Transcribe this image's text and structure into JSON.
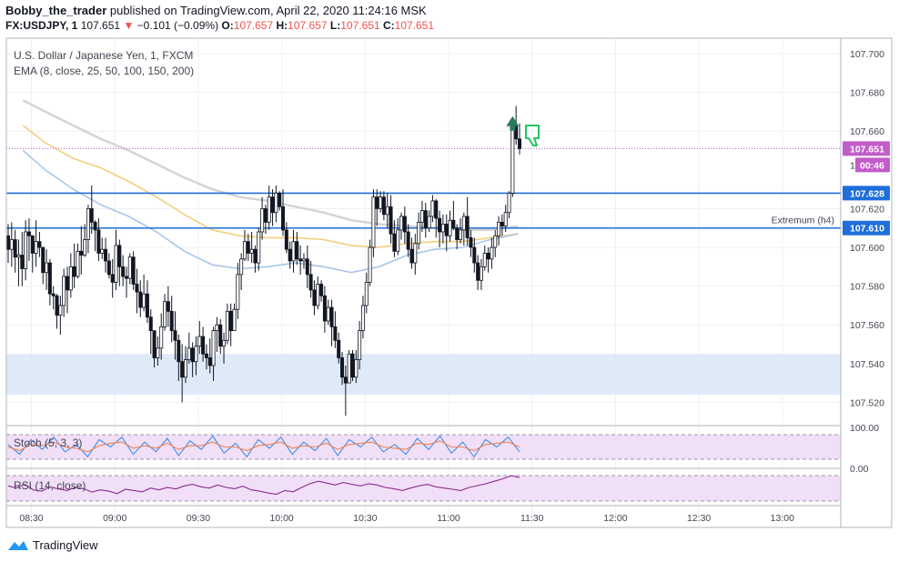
{
  "header": {
    "author": "Bobby_the_trader",
    "published_text": " published on TradingView.com, April 22, 2020 11:24:16 MSK",
    "symbol": "FX:USDJPY, 1",
    "last_price": "107.651",
    "change_arrow": "▼",
    "change": "−0.101 (−0.09%)",
    "o_label": "O:",
    "o_value": "107.657",
    "h_label": "H:",
    "h_value": "107.657",
    "l_label": "L:",
    "l_value": "107.651",
    "c_label": "C:",
    "c_value": "107.651"
  },
  "legend": {
    "instrument": "U.S. Dollar / Japanese Yen, 1, FXCM",
    "ema": "EMA (8, close, 25, 50, 100, 150, 200)",
    "stoch": "Stoch (5, 3, 3)",
    "rsi": "RSI (14, close)"
  },
  "footer": {
    "brand": "TradingView"
  },
  "colors": {
    "candle": "#131722",
    "hline": "#1e6fd9",
    "ema_fast": "#a7c6ea",
    "ema_mid": "#f2cf7c",
    "ema_slow": "#d4d4d4",
    "price_tag": "#c15cc9",
    "osc_band": "#f1dff7",
    "stoch_k": "#3f8ee8",
    "stoch_d": "#f0834e",
    "rsi_line": "#8a2c8e",
    "zone": "#dbe8f8",
    "arrow_up": "#2a7a5b",
    "thumb": "#22c55e"
  },
  "annotations": {
    "extremum_label": "Extremum (h4)",
    "countdown": "00:46",
    "partial_tick": "1"
  },
  "chart_data": {
    "type": "candlestick",
    "ylim": [
      107.508,
      107.708
    ],
    "y_ticks": [
      "107.700",
      "107.680",
      "107.660",
      "107.620",
      "107.600",
      "107.580",
      "107.560",
      "107.540",
      "107.520"
    ],
    "y_tick_values": [
      107.7,
      107.68,
      107.66,
      107.62,
      107.6,
      107.58,
      107.56,
      107.54,
      107.52
    ],
    "x_ticks": [
      "08:30",
      "09:00",
      "09:30",
      "10:00",
      "10:30",
      "11:00",
      "11:30",
      "12:00",
      "12:30",
      "13:00"
    ],
    "x_tick_minutes": [
      510,
      540,
      570,
      600,
      630,
      660,
      690,
      720,
      750,
      780
    ],
    "x_range_minutes": [
      501,
      801
    ],
    "horizontal_levels": [
      {
        "value": 107.628,
        "label": "107.628"
      },
      {
        "value": 107.61,
        "label": "107.610"
      }
    ],
    "last_price": {
      "value": 107.651,
      "label": "107.651"
    },
    "zone": [
      107.524,
      107.545
    ],
    "candles": [
      [
        107.606,
        107.599,
        107.612,
        107.592
      ],
      [
        107.599,
        107.604,
        107.613,
        107.59
      ],
      [
        107.604,
        107.595,
        107.609,
        107.587
      ],
      [
        107.595,
        107.596,
        107.604,
        107.58
      ],
      [
        107.596,
        107.589,
        107.608,
        107.58
      ],
      [
        107.589,
        107.608,
        107.614,
        107.583
      ],
      [
        107.608,
        107.606,
        107.615,
        107.593
      ],
      [
        107.606,
        107.597,
        107.603,
        107.587
      ],
      [
        107.597,
        107.603,
        107.614,
        107.59
      ],
      [
        107.603,
        107.6,
        107.608,
        107.595
      ],
      [
        107.6,
        107.587,
        107.598,
        107.581
      ],
      [
        107.587,
        107.592,
        107.599,
        107.578
      ],
      [
        107.592,
        107.576,
        107.594,
        107.57
      ],
      [
        107.576,
        107.575,
        107.58,
        107.568
      ],
      [
        107.575,
        107.565,
        107.576,
        107.558
      ],
      [
        107.565,
        107.57,
        107.575,
        107.555
      ],
      [
        107.57,
        107.585,
        107.589,
        107.564
      ],
      [
        107.585,
        107.578,
        107.59,
        107.566
      ],
      [
        107.578,
        107.59,
        107.597,
        107.574
      ],
      [
        107.59,
        107.585,
        107.602,
        107.579
      ],
      [
        107.585,
        107.598,
        107.602,
        107.584
      ],
      [
        107.598,
        107.596,
        107.611,
        107.586
      ],
      [
        107.596,
        107.604,
        107.612,
        107.595
      ],
      [
        107.604,
        107.62,
        107.622,
        107.597
      ],
      [
        107.62,
        107.613,
        107.632,
        107.607
      ],
      [
        107.613,
        107.609,
        107.614,
        107.598
      ],
      [
        107.609,
        107.597,
        107.615,
        107.593
      ],
      [
        107.597,
        107.599,
        107.605,
        107.594
      ],
      [
        107.599,
        107.593,
        107.605,
        107.587
      ],
      [
        107.593,
        107.586,
        107.597,
        107.584
      ],
      [
        107.586,
        107.582,
        107.594,
        107.574
      ],
      [
        107.582,
        107.601,
        107.609,
        107.578
      ],
      [
        107.601,
        107.59,
        107.604,
        107.58
      ],
      [
        107.59,
        107.585,
        107.596,
        107.58
      ],
      [
        107.585,
        107.584,
        107.59,
        107.574
      ],
      [
        107.584,
        107.595,
        107.597,
        107.581
      ],
      [
        107.595,
        107.581,
        107.598,
        107.578
      ],
      [
        107.581,
        107.577,
        107.589,
        107.566
      ],
      [
        107.577,
        107.569,
        107.583,
        107.564
      ],
      [
        107.569,
        107.576,
        107.586,
        107.567
      ],
      [
        107.576,
        107.564,
        107.583,
        107.561
      ],
      [
        107.564,
        107.557,
        107.568,
        107.545
      ],
      [
        107.557,
        107.543,
        107.557,
        107.538
      ],
      [
        107.543,
        107.548,
        107.554,
        107.539
      ],
      [
        107.548,
        107.559,
        107.566,
        107.542
      ],
      [
        107.559,
        107.572,
        107.576,
        107.557
      ],
      [
        107.572,
        107.567,
        107.58,
        107.559
      ],
      [
        107.567,
        107.557,
        107.575,
        107.551
      ],
      [
        107.557,
        107.552,
        107.567,
        107.542
      ],
      [
        107.552,
        107.541,
        107.555,
        107.531
      ],
      [
        107.541,
        107.533,
        107.55,
        107.52
      ],
      [
        107.533,
        107.542,
        107.549,
        107.53
      ],
      [
        107.542,
        107.548,
        107.556,
        107.54
      ],
      [
        107.548,
        107.541,
        107.551,
        107.533
      ],
      [
        107.541,
        107.549,
        107.554,
        107.534
      ],
      [
        107.549,
        107.554,
        107.562,
        107.545
      ],
      [
        107.554,
        107.545,
        107.559,
        107.541
      ],
      [
        107.545,
        107.543,
        107.55,
        107.537
      ],
      [
        107.543,
        107.539,
        107.553,
        107.535
      ],
      [
        107.539,
        107.557,
        107.559,
        107.531
      ],
      [
        107.557,
        107.56,
        107.564,
        107.546
      ],
      [
        107.56,
        107.549,
        107.563,
        107.545
      ],
      [
        107.549,
        107.552,
        107.556,
        107.54
      ],
      [
        107.552,
        107.567,
        107.571,
        107.55
      ],
      [
        107.567,
        107.557,
        107.571,
        107.549
      ],
      [
        107.557,
        107.568,
        107.571,
        107.561
      ],
      [
        107.568,
        107.586,
        107.592,
        107.563
      ],
      [
        107.586,
        107.594,
        107.597,
        107.578
      ],
      [
        107.594,
        107.603,
        107.609,
        107.593
      ],
      [
        107.603,
        107.597,
        107.607,
        107.593
      ],
      [
        107.597,
        107.599,
        107.608,
        107.592
      ],
      [
        107.599,
        107.592,
        107.601,
        107.587
      ],
      [
        107.592,
        107.608,
        107.61,
        107.588
      ],
      [
        107.608,
        107.62,
        107.626,
        107.604
      ],
      [
        107.62,
        107.613,
        107.622,
        107.607
      ],
      [
        107.613,
        107.626,
        107.632,
        107.609
      ],
      [
        107.626,
        107.618,
        107.63,
        107.611
      ],
      [
        107.618,
        107.628,
        107.632,
        107.613
      ],
      [
        107.628,
        107.621,
        107.629,
        107.619
      ],
      [
        107.621,
        107.609,
        107.63,
        107.606
      ],
      [
        107.609,
        107.599,
        107.613,
        107.597
      ],
      [
        107.599,
        107.593,
        107.603,
        107.589
      ],
      [
        107.593,
        107.603,
        107.609,
        107.587
      ],
      [
        107.603,
        107.594,
        107.608,
        107.591
      ],
      [
        107.594,
        107.593,
        107.601,
        107.586
      ],
      [
        107.593,
        107.594,
        107.597,
        107.589
      ],
      [
        107.594,
        107.586,
        107.601,
        107.579
      ],
      [
        107.586,
        107.578,
        107.593,
        107.574
      ],
      [
        107.578,
        107.57,
        107.583,
        107.565
      ],
      [
        107.57,
        107.581,
        107.585,
        107.568
      ],
      [
        107.581,
        107.575,
        107.583,
        107.572
      ],
      [
        107.575,
        107.562,
        107.58,
        107.556
      ],
      [
        107.562,
        107.569,
        107.573,
        107.56
      ],
      [
        107.569,
        107.559,
        107.573,
        107.549
      ],
      [
        107.559,
        107.552,
        107.567,
        107.548
      ],
      [
        107.552,
        107.543,
        107.556,
        107.54
      ],
      [
        107.543,
        107.533,
        107.546,
        107.529
      ],
      [
        107.533,
        107.53,
        107.539,
        107.513
      ],
      [
        107.53,
        107.545,
        107.547,
        107.53
      ],
      [
        107.545,
        107.533,
        107.547,
        107.531
      ],
      [
        107.533,
        107.542,
        107.547,
        107.53
      ],
      [
        107.542,
        107.557,
        107.562,
        107.537
      ],
      [
        107.557,
        107.57,
        107.575,
        107.553
      ],
      [
        107.57,
        107.582,
        107.587,
        107.566
      ],
      [
        107.582,
        107.6,
        107.604,
        107.58
      ],
      [
        107.6,
        107.626,
        107.63,
        107.595
      ],
      [
        107.626,
        107.62,
        107.63,
        107.611
      ],
      [
        107.62,
        107.626,
        107.629,
        107.618
      ],
      [
        107.626,
        107.617,
        107.629,
        107.614
      ],
      [
        107.617,
        107.621,
        107.628,
        107.61
      ],
      [
        107.621,
        107.607,
        107.627,
        107.602
      ],
      [
        107.607,
        107.598,
        107.614,
        107.595
      ],
      [
        107.598,
        107.609,
        107.615,
        107.596
      ],
      [
        107.609,
        107.616,
        107.618,
        107.604
      ],
      [
        107.616,
        107.608,
        107.621,
        107.602
      ],
      [
        107.608,
        107.599,
        107.612,
        107.595
      ],
      [
        107.599,
        107.592,
        107.605,
        107.589
      ],
      [
        107.592,
        107.602,
        107.607,
        107.586
      ],
      [
        107.602,
        107.613,
        107.618,
        107.599
      ],
      [
        107.613,
        107.619,
        107.624,
        107.608
      ],
      [
        107.619,
        107.61,
        107.623,
        107.605
      ],
      [
        107.61,
        107.616,
        107.619,
        107.608
      ],
      [
        107.616,
        107.624,
        107.627,
        107.613
      ],
      [
        107.624,
        107.615,
        107.625,
        107.605
      ],
      [
        107.615,
        107.608,
        107.619,
        107.6
      ],
      [
        107.608,
        107.612,
        107.617,
        107.602
      ],
      [
        107.612,
        107.606,
        107.617,
        107.598
      ],
      [
        107.606,
        107.614,
        107.619,
        107.603
      ],
      [
        107.614,
        107.61,
        107.624,
        107.609
      ],
      [
        107.61,
        107.604,
        107.612,
        107.599
      ],
      [
        107.604,
        107.609,
        107.615,
        107.602
      ],
      [
        107.609,
        107.616,
        107.618,
        107.601
      ],
      [
        107.616,
        107.605,
        107.626,
        107.601
      ],
      [
        107.605,
        107.6,
        107.609,
        107.595
      ],
      [
        107.6,
        107.592,
        107.605,
        107.587
      ],
      [
        107.592,
        107.583,
        107.596,
        107.578
      ],
      [
        107.583,
        107.59,
        107.594,
        107.578
      ],
      [
        107.59,
        107.597,
        107.601,
        107.588
      ],
      [
        107.597,
        107.594,
        107.6,
        107.587
      ],
      [
        107.594,
        107.6,
        107.605,
        107.589
      ],
      [
        107.6,
        107.606,
        107.609,
        107.595
      ],
      [
        107.606,
        107.613,
        107.616,
        107.601
      ],
      [
        107.613,
        107.611,
        107.617,
        107.606
      ],
      [
        107.611,
        107.618,
        107.622,
        107.608
      ],
      [
        107.618,
        107.628,
        107.629,
        107.615
      ],
      [
        107.628,
        107.663,
        107.667,
        107.626
      ],
      [
        107.663,
        107.656,
        107.673,
        107.653
      ],
      [
        107.656,
        107.651,
        107.664,
        107.648
      ]
    ],
    "ema_fast": [
      [
        507,
        107.65
      ],
      [
        515,
        107.64
      ],
      [
        525,
        107.63
      ],
      [
        535,
        107.622
      ],
      [
        545,
        107.616
      ],
      [
        555,
        107.608
      ],
      [
        565,
        107.598
      ],
      [
        575,
        107.591
      ],
      [
        585,
        107.589
      ],
      [
        595,
        107.59
      ],
      [
        605,
        107.592
      ],
      [
        615,
        107.59
      ],
      [
        625,
        107.587
      ],
      [
        635,
        107.59
      ],
      [
        645,
        107.596
      ],
      [
        655,
        107.599
      ],
      [
        665,
        107.6
      ],
      [
        675,
        107.604
      ],
      [
        685,
        107.607
      ]
    ],
    "ema_mid": [
      [
        507,
        107.663
      ],
      [
        515,
        107.654
      ],
      [
        525,
        107.646
      ],
      [
        535,
        107.641
      ],
      [
        545,
        107.634
      ],
      [
        555,
        107.626
      ],
      [
        565,
        107.617
      ],
      [
        575,
        107.609
      ],
      [
        585,
        107.606
      ],
      [
        595,
        107.605
      ],
      [
        605,
        107.605
      ],
      [
        615,
        107.604
      ],
      [
        625,
        107.601
      ],
      [
        635,
        107.6
      ],
      [
        645,
        107.602
      ],
      [
        655,
        107.603
      ],
      [
        665,
        107.603
      ],
      [
        675,
        107.605
      ],
      [
        685,
        107.607
      ]
    ],
    "ema_slow": [
      [
        507,
        107.676
      ],
      [
        515,
        107.67
      ],
      [
        525,
        107.663
      ],
      [
        535,
        107.656
      ],
      [
        545,
        107.65
      ],
      [
        555,
        107.643
      ],
      [
        565,
        107.636
      ],
      [
        575,
        107.63
      ],
      [
        585,
        107.626
      ],
      [
        595,
        107.624
      ],
      [
        605,
        107.621
      ],
      [
        615,
        107.618
      ],
      [
        625,
        107.614
      ],
      [
        635,
        107.612
      ],
      [
        645,
        107.611
      ],
      [
        655,
        107.61
      ],
      [
        665,
        107.609
      ],
      [
        675,
        107.609
      ],
      [
        685,
        107.611
      ]
    ],
    "stoch": {
      "levels": [
        "100.00"
      ],
      "k": [
        60,
        20,
        80,
        40,
        90,
        30,
        60,
        10,
        80,
        50,
        90,
        20,
        70,
        30,
        85,
        15,
        75,
        40,
        95,
        25,
        65,
        10,
        80,
        45,
        90,
        20,
        70,
        35,
        85,
        15,
        80,
        50,
        90,
        30,
        60,
        20,
        85,
        40,
        95,
        25,
        70,
        10,
        80,
        50,
        90,
        30
      ],
      "d": [
        50,
        35,
        60,
        55,
        70,
        50,
        45,
        30,
        55,
        65,
        70,
        45,
        55,
        45,
        65,
        40,
        55,
        55,
        70,
        50,
        50,
        35,
        55,
        60,
        70,
        45,
        55,
        50,
        65,
        40,
        60,
        65,
        70,
        50,
        45,
        40,
        65,
        60,
        75,
        50,
        50,
        35,
        60,
        65,
        70,
        50
      ]
    },
    "rsi": {
      "levels": [
        "0.00"
      ],
      "values": [
        55,
        48,
        60,
        42,
        38,
        52,
        45,
        40,
        50,
        46,
        35,
        42,
        38,
        30,
        44,
        40,
        36,
        48,
        42,
        50,
        45,
        55,
        60,
        52,
        48,
        58,
        50,
        46,
        54,
        42,
        38,
        32,
        28,
        40,
        36,
        50,
        62,
        70,
        64,
        58,
        66,
        60,
        55,
        62,
        58,
        50,
        46,
        40,
        48,
        55,
        60,
        52,
        48,
        44,
        40,
        50,
        56,
        62,
        70,
        78,
        88,
        82
      ]
    }
  }
}
